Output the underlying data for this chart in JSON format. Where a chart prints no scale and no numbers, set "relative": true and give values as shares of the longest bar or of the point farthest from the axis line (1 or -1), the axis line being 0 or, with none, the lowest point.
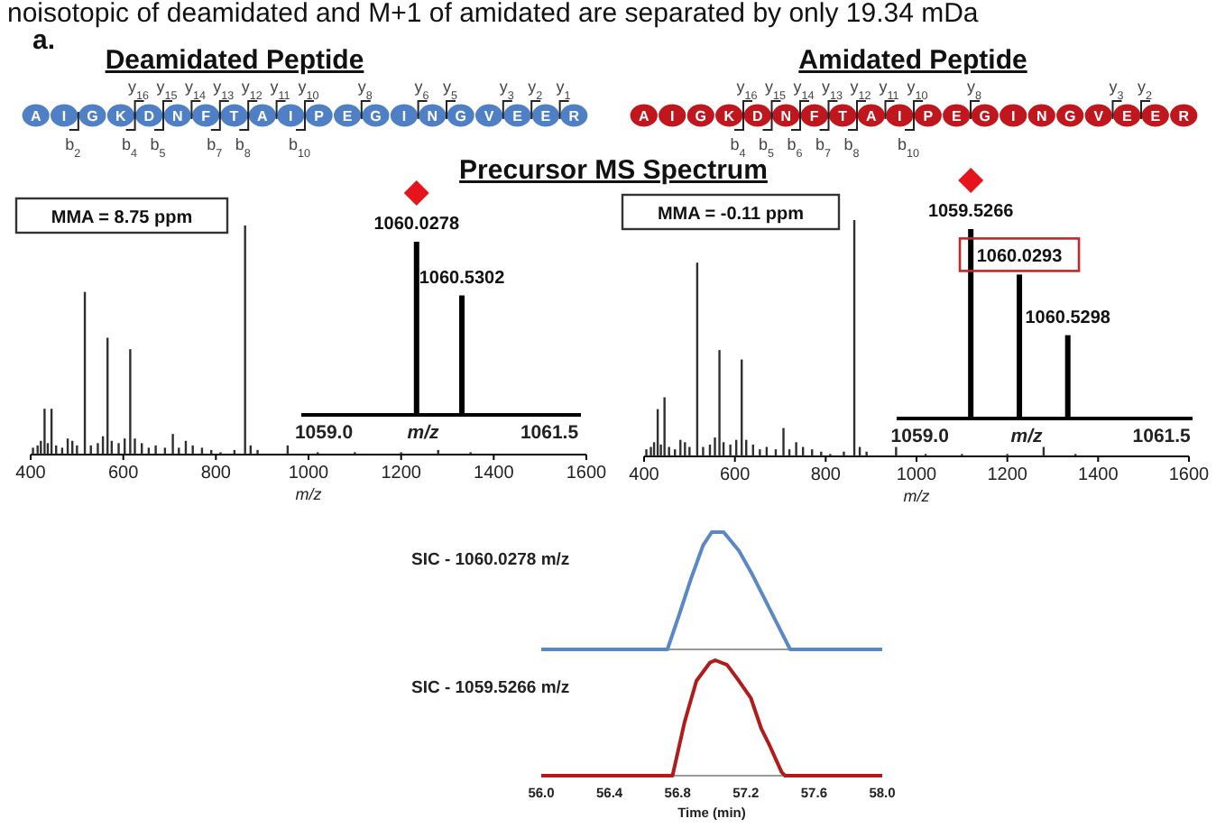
{
  "chart_data": [
    {
      "type": "other",
      "annotations": [
        "noisotopic of deamidated and M+1 of amidated are separated by only 19.34 mDa",
        "a.",
        "Precursor MS Spectrum"
      ]
    },
    {
      "type": "other",
      "title": "Deamidated Peptide",
      "color": "#4f7fc4",
      "categories": [
        "A",
        "I",
        "G",
        "K",
        "D",
        "N",
        "F",
        "T",
        "A",
        "I",
        "P",
        "E",
        "G",
        "I",
        "N",
        "G",
        "V",
        "E",
        "E",
        "R"
      ],
      "annotations": [
        "y$_{16}$",
        "y$_{15}$",
        "y$_{14}$",
        "y$_{13}$",
        "y$_{12}$",
        "y$_{11}$",
        "y$_{10}$",
        "y$_{8}$",
        "y$_{6}$",
        "y$_{5}$",
        "y$_{3}$",
        "y$_{2}$",
        "y$_{1}$",
        "b$_{2}$",
        "b$_{4}$",
        "b$_{5}$",
        "b$_{7}$",
        "b$_{8}$",
        "b$_{10}$"
      ]
    },
    {
      "type": "other",
      "title": "Amidated Peptide",
      "color": "#c0161e",
      "categories": [
        "A",
        "I",
        "G",
        "K",
        "D",
        "N",
        "F",
        "T",
        "A",
        "I",
        "P",
        "E",
        "G",
        "I",
        "N",
        "G",
        "V",
        "E",
        "E",
        "R"
      ],
      "annotations": [
        "y$_{16}$",
        "y$_{15}$",
        "y$_{14}$",
        "y$_{13}$",
        "y$_{12}$",
        "y$_{11}$",
        "y$_{10}$",
        "y$_{8}$",
        "y$_{3}$",
        "y$_{2}$",
        "b$_{4}$",
        "b$_{5}$",
        "b$_{6}$",
        "b$_{7}$",
        "b$_{8}$",
        "b$_{10}$"
      ]
    },
    {
      "type": "bar",
      "relative": true,
      "color": "#303030",
      "xlabel": "m/z",
      "xlim": [
        400,
        1600
      ],
      "xticks": [
        400,
        600,
        800,
        1000,
        1200,
        1400,
        1600
      ],
      "annotations": [
        "MMA = 8.75 ppm"
      ],
      "x": [
        405,
        415,
        422,
        430,
        437,
        445,
        455,
        468,
        480,
        490,
        500,
        517,
        530,
        545,
        556,
        566,
        575,
        590,
        603,
        615,
        625,
        640,
        655,
        670,
        690,
        707,
        720,
        735,
        750,
        770,
        790,
        810,
        840,
        863,
        875,
        890,
        955,
        1020,
        1100,
        1200,
        1280,
        1350
      ],
      "values": [
        0.03,
        0.04,
        0.06,
        0.2,
        0.05,
        0.2,
        0.04,
        0.03,
        0.07,
        0.06,
        0.04,
        0.71,
        0.04,
        0.05,
        0.08,
        0.51,
        0.06,
        0.05,
        0.07,
        0.46,
        0.07,
        0.05,
        0.03,
        0.04,
        0.03,
        0.09,
        0.03,
        0.06,
        0.04,
        0.03,
        0.02,
        0.01,
        0.02,
        1,
        0.04,
        0.02,
        0.04,
        0.01,
        0.01,
        0.01,
        0.02,
        0.01
      ]
    },
    {
      "type": "bar",
      "relative": true,
      "color": "#303030",
      "xlabel": "m/z",
      "xlim": [
        400,
        1600
      ],
      "xticks": [
        400,
        600,
        800,
        1000,
        1200,
        1400,
        1600
      ],
      "annotations": [
        "MMA = -0.11 ppm"
      ],
      "x": [
        405,
        415,
        422,
        430,
        437,
        445,
        455,
        468,
        480,
        490,
        500,
        517,
        530,
        545,
        556,
        566,
        575,
        590,
        603,
        615,
        625,
        640,
        655,
        670,
        690,
        707,
        720,
        735,
        750,
        770,
        790,
        810,
        840,
        863,
        875,
        890,
        955,
        1020,
        1100,
        1200,
        1280,
        1350
      ],
      "values": [
        0.03,
        0.04,
        0.06,
        0.2,
        0.05,
        0.25,
        0.04,
        0.03,
        0.07,
        0.06,
        0.04,
        0.82,
        0.04,
        0.05,
        0.08,
        0.45,
        0.06,
        0.05,
        0.07,
        0.41,
        0.07,
        0.05,
        0.03,
        0.04,
        0.03,
        0.12,
        0.03,
        0.06,
        0.04,
        0.03,
        0.02,
        0.01,
        0.02,
        1,
        0.04,
        0.02,
        0.04,
        0.01,
        0.01,
        0.01,
        0.04,
        0.01
      ]
    },
    {
      "type": "bar",
      "relative": true,
      "color": "#000000",
      "xlabel": "m/z",
      "xlim": [
        1058.75,
        1061.85
      ],
      "xticks": [
        {
          "value": 1059,
          "label": "1059.0"
        },
        {
          "value": 1061.5,
          "label": "1061.5"
        }
      ],
      "x": [
        1060.0278,
        1060.5302
      ],
      "values": [
        1,
        0.69
      ],
      "annotations": [
        {
          "text": "1060.0278",
          "x": 1060.0278,
          "y": 1
        },
        {
          "text": "1060.5302",
          "x": 1060.5302,
          "y": 0.69
        }
      ]
    },
    {
      "type": "bar",
      "relative": true,
      "color": "#000000",
      "xlabel": "m/z",
      "xlim": [
        1058.76,
        1061.82
      ],
      "xticks": [
        {
          "value": 1059,
          "label": "1059.0"
        },
        {
          "value": 1061.5,
          "label": "1061.5"
        }
      ],
      "x": [
        1059.5266,
        1060.0293,
        1060.5298
      ],
      "values": [
        1,
        0.76,
        0.44
      ],
      "annotations": [
        {
          "text": "1059.5266",
          "x": 1059.5266,
          "y": 1
        },
        {
          "text": "1060.0293",
          "x": 1060.0293,
          "y": 0.76
        },
        {
          "text": "1060.5298",
          "x": 1060.5298,
          "y": 0.44
        }
      ]
    },
    {
      "type": "line",
      "relative": true,
      "title": "SIC - 1060.0278 m/z",
      "color": "#5b87c5",
      "xlim": [
        56,
        58
      ],
      "tick_labels": false,
      "x": [
        56,
        56.5,
        56.74,
        56.81,
        56.88,
        56.95,
        57.0,
        57.07,
        57.16,
        57.23,
        57.3,
        57.38,
        57.46,
        57.7,
        58
      ],
      "values": [
        0,
        0,
        0,
        0.3,
        0.61,
        0.89,
        1,
        1,
        0.84,
        0.66,
        0.46,
        0.23,
        0,
        0,
        0
      ]
    },
    {
      "type": "line",
      "relative": true,
      "title": "SIC - 1059.5266 m/z",
      "xlabel": "Time (min)",
      "color": "#b01c1c",
      "xlim": [
        56,
        58
      ],
      "tick_labels": "x",
      "xticks": [
        {
          "value": 56,
          "label": "56.0"
        },
        {
          "value": 56.4,
          "label": "56.4"
        },
        {
          "value": 56.8,
          "label": "56.8"
        },
        {
          "value": 57.2,
          "label": "57.2"
        },
        {
          "value": 57.6,
          "label": "57.6"
        },
        {
          "value": 58,
          "label": "58.0"
        }
      ],
      "x": [
        56,
        56.5,
        56.77,
        56.84,
        56.91,
        56.99,
        57.02,
        57.09,
        57.16,
        57.23,
        57.29,
        57.34,
        57.41,
        57.43,
        57.7,
        58
      ],
      "values": [
        0,
        0,
        0,
        0.46,
        0.82,
        0.98,
        1,
        0.96,
        0.82,
        0.67,
        0.41,
        0.26,
        0.03,
        0,
        0,
        0
      ]
    }
  ]
}
